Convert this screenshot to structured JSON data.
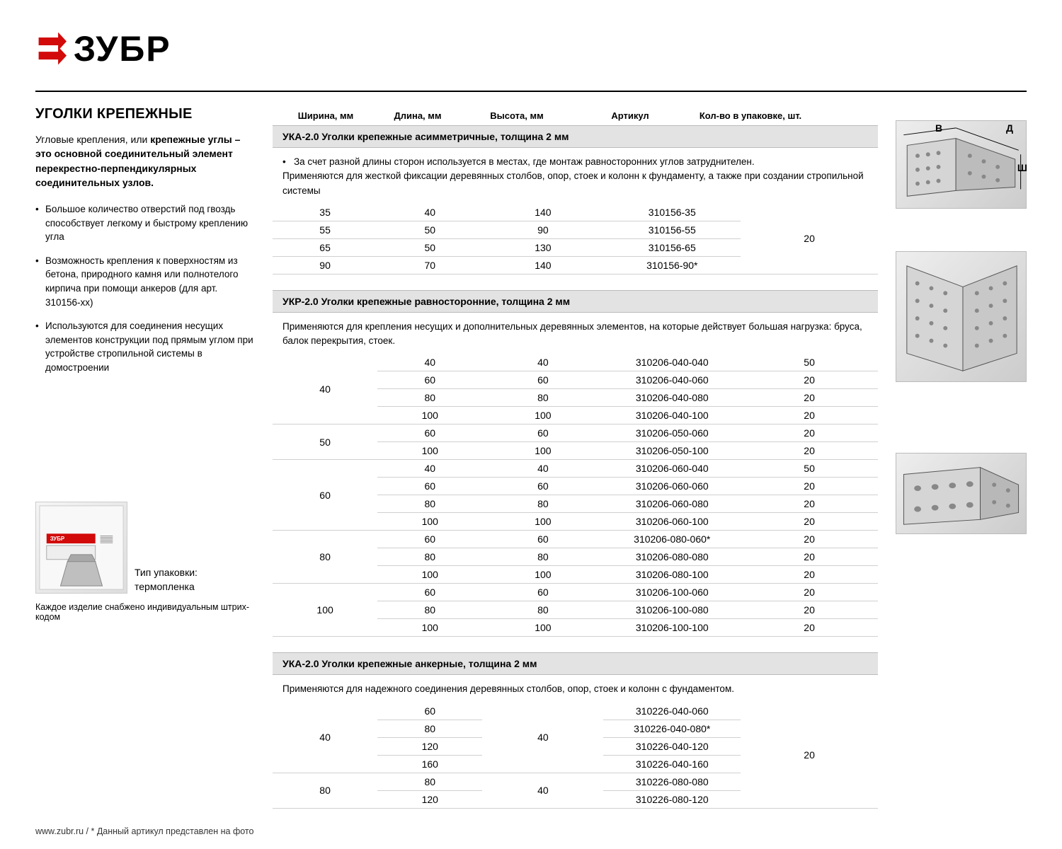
{
  "logo_text": "ЗУБР",
  "side": {
    "title": "УГОЛКИ КРЕПЕЖНЫЕ",
    "intro_plain": "Угловые крепления, или ",
    "intro_bold": "крепежные углы – это основной соединительный элемент перекрестно-перпендикулярных соединительных узлов.",
    "bullets": [
      "Большое количество отверстий под гвоздь способствует легкому и быстрому креплению угла",
      "Возможность крепления к поверхностям из бетона, природного камня или полнотелого кирпича при помощи анкеров (для арт. 310156-xx)",
      "Используются для соединения несущих элементов конструкции под прямым углом при устройстве стропильной системы в домостроении"
    ],
    "package_label_1": "Тип упаковки:",
    "package_label_2": "термопленка",
    "package_note": "Каждое изделие снабжено индивидуальным штрих-кодом"
  },
  "footer": "www.zubr.ru    /    * Данный артикул представлен на фото",
  "headers": {
    "c1": "Ширина, мм",
    "c2": "Длина, мм",
    "c3": "Высота, мм",
    "c4": "Артикул",
    "c5": "Кол-во в упаковке, шт."
  },
  "dim_labels": {
    "v": "В",
    "d": "Д",
    "sh": "Ш"
  },
  "sections": [
    {
      "header": "УКА-2.0  Уголки крепежные асимметричные, толщина 2 мм",
      "desc": [
        {
          "bullet": true,
          "text": "За счет разной длины сторон используется в местах, где монтаж равносторонних углов затруднителен."
        },
        {
          "bullet": false,
          "text": "Применяются для жесткой фиксации деревянных столбов, опор, стоек и колонн к фундаменту, а также при создании стропильной системы"
        }
      ],
      "rows": [
        {
          "w": "35",
          "l": "40",
          "h": "140",
          "art": "310156-35",
          "qty": ""
        },
        {
          "w": "55",
          "l": "50",
          "h": "90",
          "art": "310156-55",
          "qty": ""
        },
        {
          "w": "65",
          "l": "50",
          "h": "130",
          "art": "310156-65",
          "qty": "20"
        },
        {
          "w": "90",
          "l": "70",
          "h": "140",
          "art": "310156-90*",
          "qty": ""
        }
      ],
      "qty_rowspan": 4
    },
    {
      "header": "УКР-2.0  Уголки крепежные равносторонние, толщина 2 мм",
      "desc": [
        {
          "bullet": false,
          "text": "Применяются для крепления несущих и дополнительных деревянных элементов, на которые действует большая нагрузка: бруса, балок перекрытия, стоек."
        }
      ],
      "groups": [
        {
          "w": "40",
          "rows": [
            [
              "40",
              "40",
              "310206-040-040",
              "50"
            ],
            [
              "60",
              "60",
              "310206-040-060",
              "20"
            ],
            [
              "80",
              "80",
              "310206-040-080",
              "20"
            ],
            [
              "100",
              "100",
              "310206-040-100",
              "20"
            ]
          ]
        },
        {
          "w": "50",
          "rows": [
            [
              "60",
              "60",
              "310206-050-060",
              "20"
            ],
            [
              "100",
              "100",
              "310206-050-100",
              "20"
            ]
          ]
        },
        {
          "w": "60",
          "rows": [
            [
              "40",
              "40",
              "310206-060-040",
              "50"
            ],
            [
              "60",
              "60",
              "310206-060-060",
              "20"
            ],
            [
              "80",
              "80",
              "310206-060-080",
              "20"
            ],
            [
              "100",
              "100",
              "310206-060-100",
              "20"
            ]
          ]
        },
        {
          "w": "80",
          "rows": [
            [
              "60",
              "60",
              "310206-080-060*",
              "20"
            ],
            [
              "80",
              "80",
              "310206-080-080",
              "20"
            ],
            [
              "100",
              "100",
              "310206-080-100",
              "20"
            ]
          ]
        },
        {
          "w": "100",
          "rows": [
            [
              "60",
              "60",
              "310206-100-060",
              "20"
            ],
            [
              "80",
              "80",
              "310206-100-080",
              "20"
            ],
            [
              "100",
              "100",
              "310206-100-100",
              "20"
            ]
          ]
        }
      ]
    },
    {
      "header": "УКА-2.0  Уголки крепежные анкерные, толщина 2 мм",
      "desc": [
        {
          "bullet": false,
          "text": "Применяются для надежного соединения деревянных столбов, опор, стоек и колонн с фундаментом."
        }
      ],
      "groups3": [
        {
          "w": "40",
          "h": "40",
          "rows": [
            [
              "60",
              "310226-040-060"
            ],
            [
              "80",
              "310226-040-080*"
            ],
            [
              "120",
              "310226-040-120"
            ],
            [
              "160",
              "310226-040-160"
            ]
          ]
        },
        {
          "w": "80",
          "h": "40",
          "rows": [
            [
              "80",
              "310226-080-080"
            ],
            [
              "120",
              "310226-080-120"
            ]
          ]
        }
      ],
      "qty_all": "20"
    }
  ]
}
